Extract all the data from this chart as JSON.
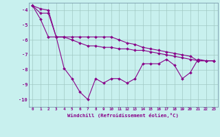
{
  "xlabel": "Windchill (Refroidissement éolien,°C)",
  "background_color": "#c8f0ee",
  "line_color": "#880088",
  "x_values": [
    0,
    1,
    2,
    3,
    4,
    5,
    6,
    7,
    8,
    9,
    10,
    11,
    12,
    13,
    14,
    15,
    16,
    17,
    18,
    19,
    20,
    21,
    22,
    23
  ],
  "series1": [
    -3.7,
    -4.6,
    -5.8,
    -5.8,
    -7.9,
    -8.6,
    -9.5,
    -10.0,
    -8.6,
    -8.9,
    -8.6,
    -8.6,
    -8.9,
    -8.6,
    -7.6,
    -7.6,
    -7.6,
    -7.3,
    -7.7,
    -8.6,
    -8.2,
    -7.3,
    -7.4,
    -7.4
  ],
  "series2": [
    -3.7,
    -4.2,
    -4.2,
    -5.8,
    -5.8,
    -6.0,
    -6.2,
    -6.4,
    -6.4,
    -6.5,
    -6.5,
    -6.6,
    -6.6,
    -6.7,
    -6.7,
    -6.8,
    -6.9,
    -7.0,
    -7.1,
    -7.2,
    -7.3,
    -7.4,
    -7.4,
    -7.4
  ],
  "series3": [
    -3.7,
    -3.9,
    -4.0,
    -5.8,
    -5.8,
    -5.8,
    -5.8,
    -5.8,
    -5.8,
    -5.8,
    -5.8,
    -6.0,
    -6.2,
    -6.3,
    -6.5,
    -6.6,
    -6.7,
    -6.8,
    -6.9,
    -7.0,
    -7.1,
    -7.4,
    -7.4,
    -7.4
  ],
  "ylim": [
    -10.5,
    -3.5
  ],
  "xlim": [
    -0.5,
    23.5
  ],
  "yticks": [
    -10,
    -9,
    -8,
    -7,
    -6,
    -5,
    -4
  ],
  "xticks": [
    0,
    1,
    2,
    3,
    4,
    5,
    6,
    7,
    8,
    9,
    10,
    11,
    12,
    13,
    14,
    15,
    16,
    17,
    18,
    19,
    20,
    21,
    22,
    23
  ],
  "figsize": [
    3.2,
    2.0
  ],
  "dpi": 100
}
